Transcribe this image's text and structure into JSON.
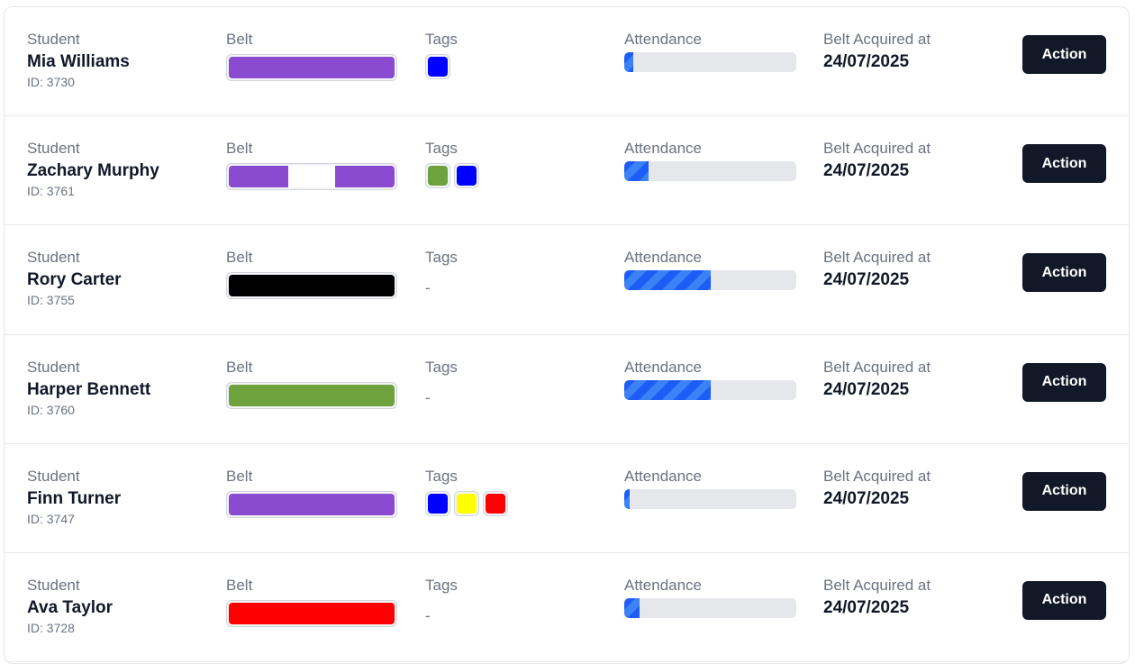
{
  "labels": {
    "student": "Student",
    "belt": "Belt",
    "tags": "Tags",
    "attendance": "Attendance",
    "belt_acquired": "Belt Acquired at",
    "action": "Action",
    "empty_tags": "-"
  },
  "rows": [
    {
      "name": "Mia Williams",
      "id": "ID: 3730",
      "belt": [
        "#8b4bd0"
      ],
      "tags": [
        "#0000ff"
      ],
      "attendance_pct": 5,
      "acquired": "24/07/2025"
    },
    {
      "name": "Zachary Murphy",
      "id": "ID: 3761",
      "belt": [
        "#8b4bd0",
        "#ffffff",
        "#8b4bd0"
      ],
      "tags": [
        "#6ea23c",
        "#0000ff"
      ],
      "attendance_pct": 14,
      "acquired": "24/07/2025"
    },
    {
      "name": "Rory Carter",
      "id": "ID: 3755",
      "belt": [
        "#000000"
      ],
      "tags": [],
      "attendance_pct": 50,
      "acquired": "24/07/2025"
    },
    {
      "name": "Harper Bennett",
      "id": "ID: 3760",
      "belt": [
        "#6ea23c"
      ],
      "tags": [],
      "attendance_pct": 50,
      "acquired": "24/07/2025"
    },
    {
      "name": "Finn Turner",
      "id": "ID: 3747",
      "belt": [
        "#8b4bd0"
      ],
      "tags": [
        "#0000ff",
        "#ffff00",
        "#ff0000"
      ],
      "attendance_pct": 3,
      "acquired": "24/07/2025"
    },
    {
      "name": "Ava Taylor",
      "id": "ID: 3728",
      "belt": [
        "#ff0000"
      ],
      "tags": [],
      "attendance_pct": 9,
      "acquired": "24/07/2025"
    }
  ]
}
